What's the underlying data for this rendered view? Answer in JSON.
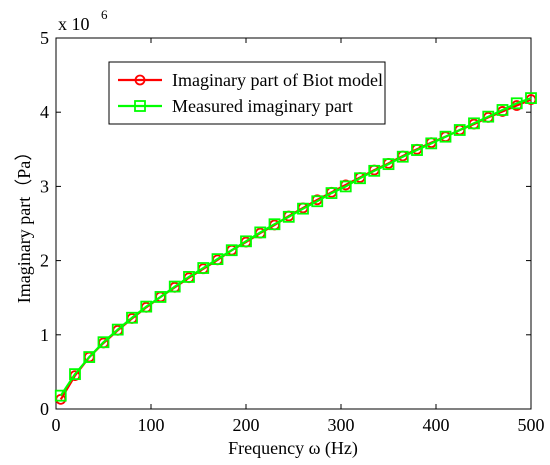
{
  "chart_data": {
    "type": "line",
    "xlabel": "Frequency  ω (Hz)",
    "ylabel": "Imaginary part（Pa）",
    "y_multiplier_label": "x 10",
    "y_multiplier_exponent": "6",
    "xlim": [
      0,
      500
    ],
    "ylim": [
      0,
      5
    ],
    "x_ticks": [
      0,
      100,
      200,
      300,
      400,
      500
    ],
    "y_ticks": [
      0,
      1,
      2,
      3,
      4,
      5
    ],
    "x_tick_labels": [
      "0",
      "100",
      "200",
      "300",
      "400",
      "500"
    ],
    "y_tick_labels": [
      "0",
      "1",
      "2",
      "3",
      "4",
      "5"
    ],
    "grid": false,
    "legend_position": "top-left",
    "x": [
      5,
      20,
      35,
      50,
      65,
      80,
      95,
      110,
      125,
      140,
      155,
      170,
      185,
      200,
      215,
      230,
      245,
      260,
      275,
      290,
      305,
      320,
      335,
      350,
      365,
      380,
      395,
      410,
      425,
      440,
      455,
      470,
      485,
      500
    ],
    "series": [
      {
        "name": "Imaginary part of Biot model",
        "color": "#ff0000",
        "marker": "circle",
        "values": [
          0.13,
          0.45,
          0.7,
          0.89,
          1.06,
          1.22,
          1.37,
          1.51,
          1.64,
          1.77,
          1.89,
          2.01,
          2.14,
          2.25,
          2.37,
          2.48,
          2.6,
          2.71,
          2.82,
          2.92,
          3.02,
          3.12,
          3.22,
          3.31,
          3.41,
          3.5,
          3.59,
          3.67,
          3.76,
          3.84,
          3.93,
          4.01,
          4.09,
          4.17
        ]
      },
      {
        "name": "Measured imaginary part",
        "color": "#00ff00",
        "marker": "square",
        "values": [
          0.18,
          0.47,
          0.7,
          0.9,
          1.07,
          1.23,
          1.38,
          1.51,
          1.65,
          1.78,
          1.9,
          2.02,
          2.14,
          2.26,
          2.38,
          2.49,
          2.59,
          2.7,
          2.8,
          2.91,
          3.0,
          3.11,
          3.21,
          3.3,
          3.4,
          3.49,
          3.58,
          3.67,
          3.76,
          3.85,
          3.94,
          4.03,
          4.12,
          4.19
        ]
      }
    ]
  }
}
